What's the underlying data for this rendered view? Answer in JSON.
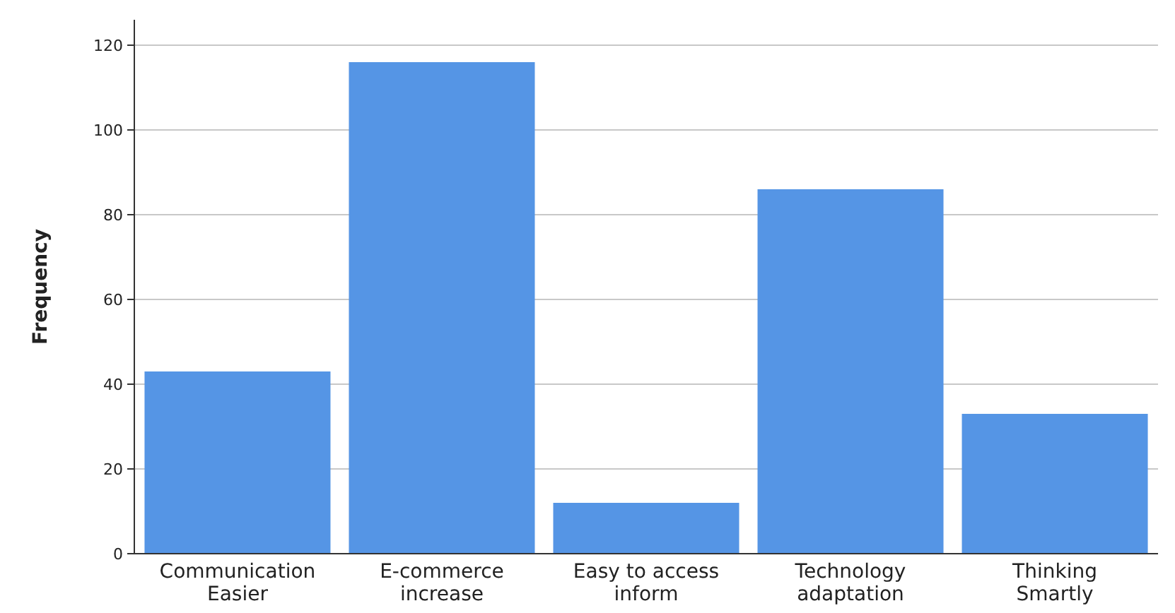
{
  "chart_data": {
    "type": "bar",
    "ylabel": "Frequency",
    "categories": [
      "Communication Easier",
      "E-commerce increase",
      "Easy to access inform",
      "Technology adaptation",
      "Thinking Smartly"
    ],
    "values": [
      43,
      116,
      12,
      86,
      33
    ],
    "color": "#5595e5",
    "ylim": [
      0,
      126
    ],
    "yticks": [
      0,
      20,
      40,
      60,
      80,
      100,
      120
    ],
    "grid": "y"
  }
}
